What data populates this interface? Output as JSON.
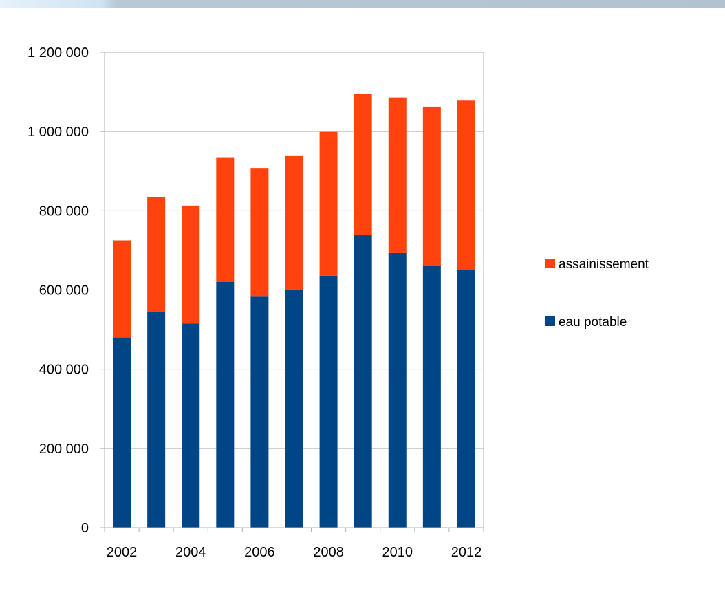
{
  "chart_data": {
    "type": "bar",
    "stacked": true,
    "title": "",
    "xlabel": "",
    "ylabel": "",
    "categories": [
      "2002",
      "2003",
      "2004",
      "2005",
      "2006",
      "2007",
      "2008",
      "2009",
      "2010",
      "2011",
      "2012"
    ],
    "x_tick_labels": [
      "2002",
      "2004",
      "2006",
      "2008",
      "2010",
      "2012"
    ],
    "y_tick_labels": [
      "0",
      "200 000",
      "400 000",
      "600 000",
      "800 000",
      "1 000 000",
      "1 200 000"
    ],
    "ylim": [
      0,
      1200000
    ],
    "grid": true,
    "legend_position": "right",
    "series": [
      {
        "name": "eau potable",
        "color": "#004586",
        "values": [
          480000,
          545000,
          515000,
          620000,
          583000,
          601000,
          636000,
          738000,
          693000,
          661000,
          650000
        ]
      },
      {
        "name": "assainissement",
        "color": "#ff420e",
        "values": [
          245000,
          290000,
          298000,
          315000,
          325000,
          337000,
          363000,
          357000,
          393000,
          402000,
          428000
        ]
      }
    ],
    "legend": [
      {
        "name": "assainissement",
        "color": "#ff420e"
      },
      {
        "name": "eau potable",
        "color": "#004586"
      }
    ]
  }
}
